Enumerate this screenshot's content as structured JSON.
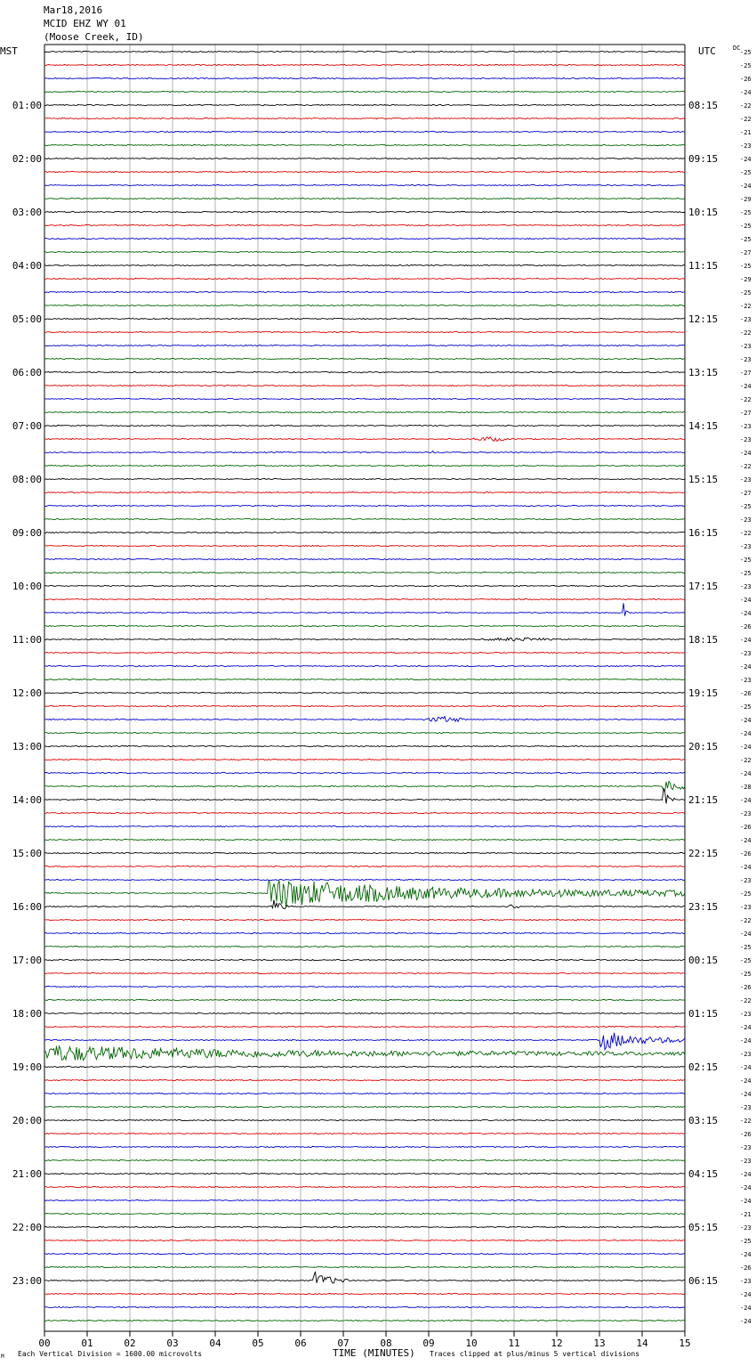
{
  "header": {
    "date": "Mar18,2016",
    "station": "MCID EHZ WY 01",
    "location": "(Moose Creek, ID)"
  },
  "chart_data": {
    "type": "line",
    "title": "",
    "left_axis_label": "MST",
    "right_axis_label": "UTC",
    "dc_label": "DC",
    "xlabel": "TIME (MINUTES)",
    "xlim": [
      0,
      15
    ],
    "x_ticks": [
      "00",
      "01",
      "02",
      "03",
      "04",
      "05",
      "06",
      "07",
      "08",
      "09",
      "10",
      "11",
      "12",
      "13",
      "14",
      "15"
    ],
    "trace_count": 96,
    "trace_interval_minutes": 15,
    "trace_colors": [
      "#000000",
      "#e00000",
      "#0000d0",
      "#006400"
    ],
    "grid": true,
    "left_hour_labels": [
      "01:00",
      "02:00",
      "03:00",
      "04:00",
      "05:00",
      "06:00",
      "07:00",
      "08:00",
      "09:00",
      "10:00",
      "11:00",
      "12:00",
      "13:00",
      "14:00",
      "15:00",
      "16:00",
      "17:00",
      "18:00",
      "19:00",
      "20:00",
      "21:00",
      "22:00",
      "23:00"
    ],
    "right_hour_labels": [
      "08:15",
      "09:15",
      "10:15",
      "11:15",
      "12:15",
      "13:15",
      "14:15",
      "15:15",
      "16:15",
      "17:15",
      "18:15",
      "19:15",
      "20:15",
      "21:15",
      "22:15",
      "23:15",
      "00:15",
      "01:15",
      "02:15",
      "03:15",
      "04:15",
      "05:15",
      "06:15"
    ],
    "dc_offsets": [
      "25",
      "25",
      "26",
      "24",
      "22",
      "22",
      "21",
      "23",
      "24",
      "25",
      "24",
      "29",
      "25",
      "25",
      "25",
      "27",
      "25",
      "29",
      "25",
      "22",
      "23",
      "22",
      "23",
      "23",
      "27",
      "24",
      "22",
      "27",
      "23",
      "23",
      "24",
      "22",
      "23",
      "27",
      "25",
      "23",
      "22",
      "23",
      "25",
      "25",
      "23",
      "24",
      "24",
      "26",
      "24",
      "23",
      "24",
      "23",
      "26",
      "25",
      "24",
      "24",
      "24",
      "22",
      "24",
      "28",
      "24",
      "23",
      "26",
      "24",
      "26",
      "24",
      "23",
      "25",
      "23",
      "22",
      "24",
      "25",
      "25",
      "25",
      "26",
      "22",
      "23",
      "24",
      "24",
      "23",
      "24",
      "24",
      "24",
      "23",
      "22",
      "26",
      "23",
      "23",
      "24",
      "24",
      "24",
      "21",
      "23",
      "25",
      "24",
      "26",
      "23",
      "24",
      "24",
      "24"
    ],
    "events": [
      {
        "trace": 29,
        "start_min": 10.0,
        "end_min": 10.9,
        "amplitude": 0.35,
        "type": "burst"
      },
      {
        "trace": 30,
        "start_min": 8.95,
        "end_min": 9.2,
        "amplitude": 0.2,
        "type": "burst"
      },
      {
        "trace": 42,
        "start_min": 13.55,
        "end_min": 13.8,
        "amplitude": 2.5,
        "type": "spike"
      },
      {
        "trace": 44,
        "start_min": 10.2,
        "end_min": 12.0,
        "amplitude": 0.25,
        "type": "burst"
      },
      {
        "trace": 50,
        "start_min": 8.85,
        "end_min": 9.9,
        "amplitude": 0.5,
        "type": "burst"
      },
      {
        "trace": 55,
        "start_min": 14.5,
        "end_min": 15.0,
        "amplitude": 2.3,
        "type": "quake"
      },
      {
        "trace": 56,
        "start_min": 14.5,
        "end_min": 14.8,
        "amplitude": 1.8,
        "type": "quake"
      },
      {
        "trace": 63,
        "start_min": 5.25,
        "end_min": 15.0,
        "amplitude": 2.6,
        "type": "quake"
      },
      {
        "trace": 64,
        "start_min": 5.3,
        "end_min": 5.7,
        "amplitude": 1.8,
        "type": "quake"
      },
      {
        "trace": 64,
        "start_min": 10.8,
        "end_min": 11.2,
        "amplitude": 0.35,
        "type": "burst"
      },
      {
        "trace": 74,
        "start_min": 13.0,
        "end_min": 15.0,
        "amplitude": 1.9,
        "type": "quake"
      },
      {
        "trace": 75,
        "start_min": 0.0,
        "end_min": 15.0,
        "amplitude": 1.4,
        "type": "quake"
      },
      {
        "trace": 92,
        "start_min": 6.3,
        "end_min": 7.1,
        "amplitude": 1.8,
        "type": "quake"
      }
    ]
  },
  "footer": {
    "scale_note": "Each Vertical Division = 1600.00 microvolts",
    "clip_note": "Traces clipped at plus/minus 5 vertical divisions",
    "corner_mark": "M"
  }
}
